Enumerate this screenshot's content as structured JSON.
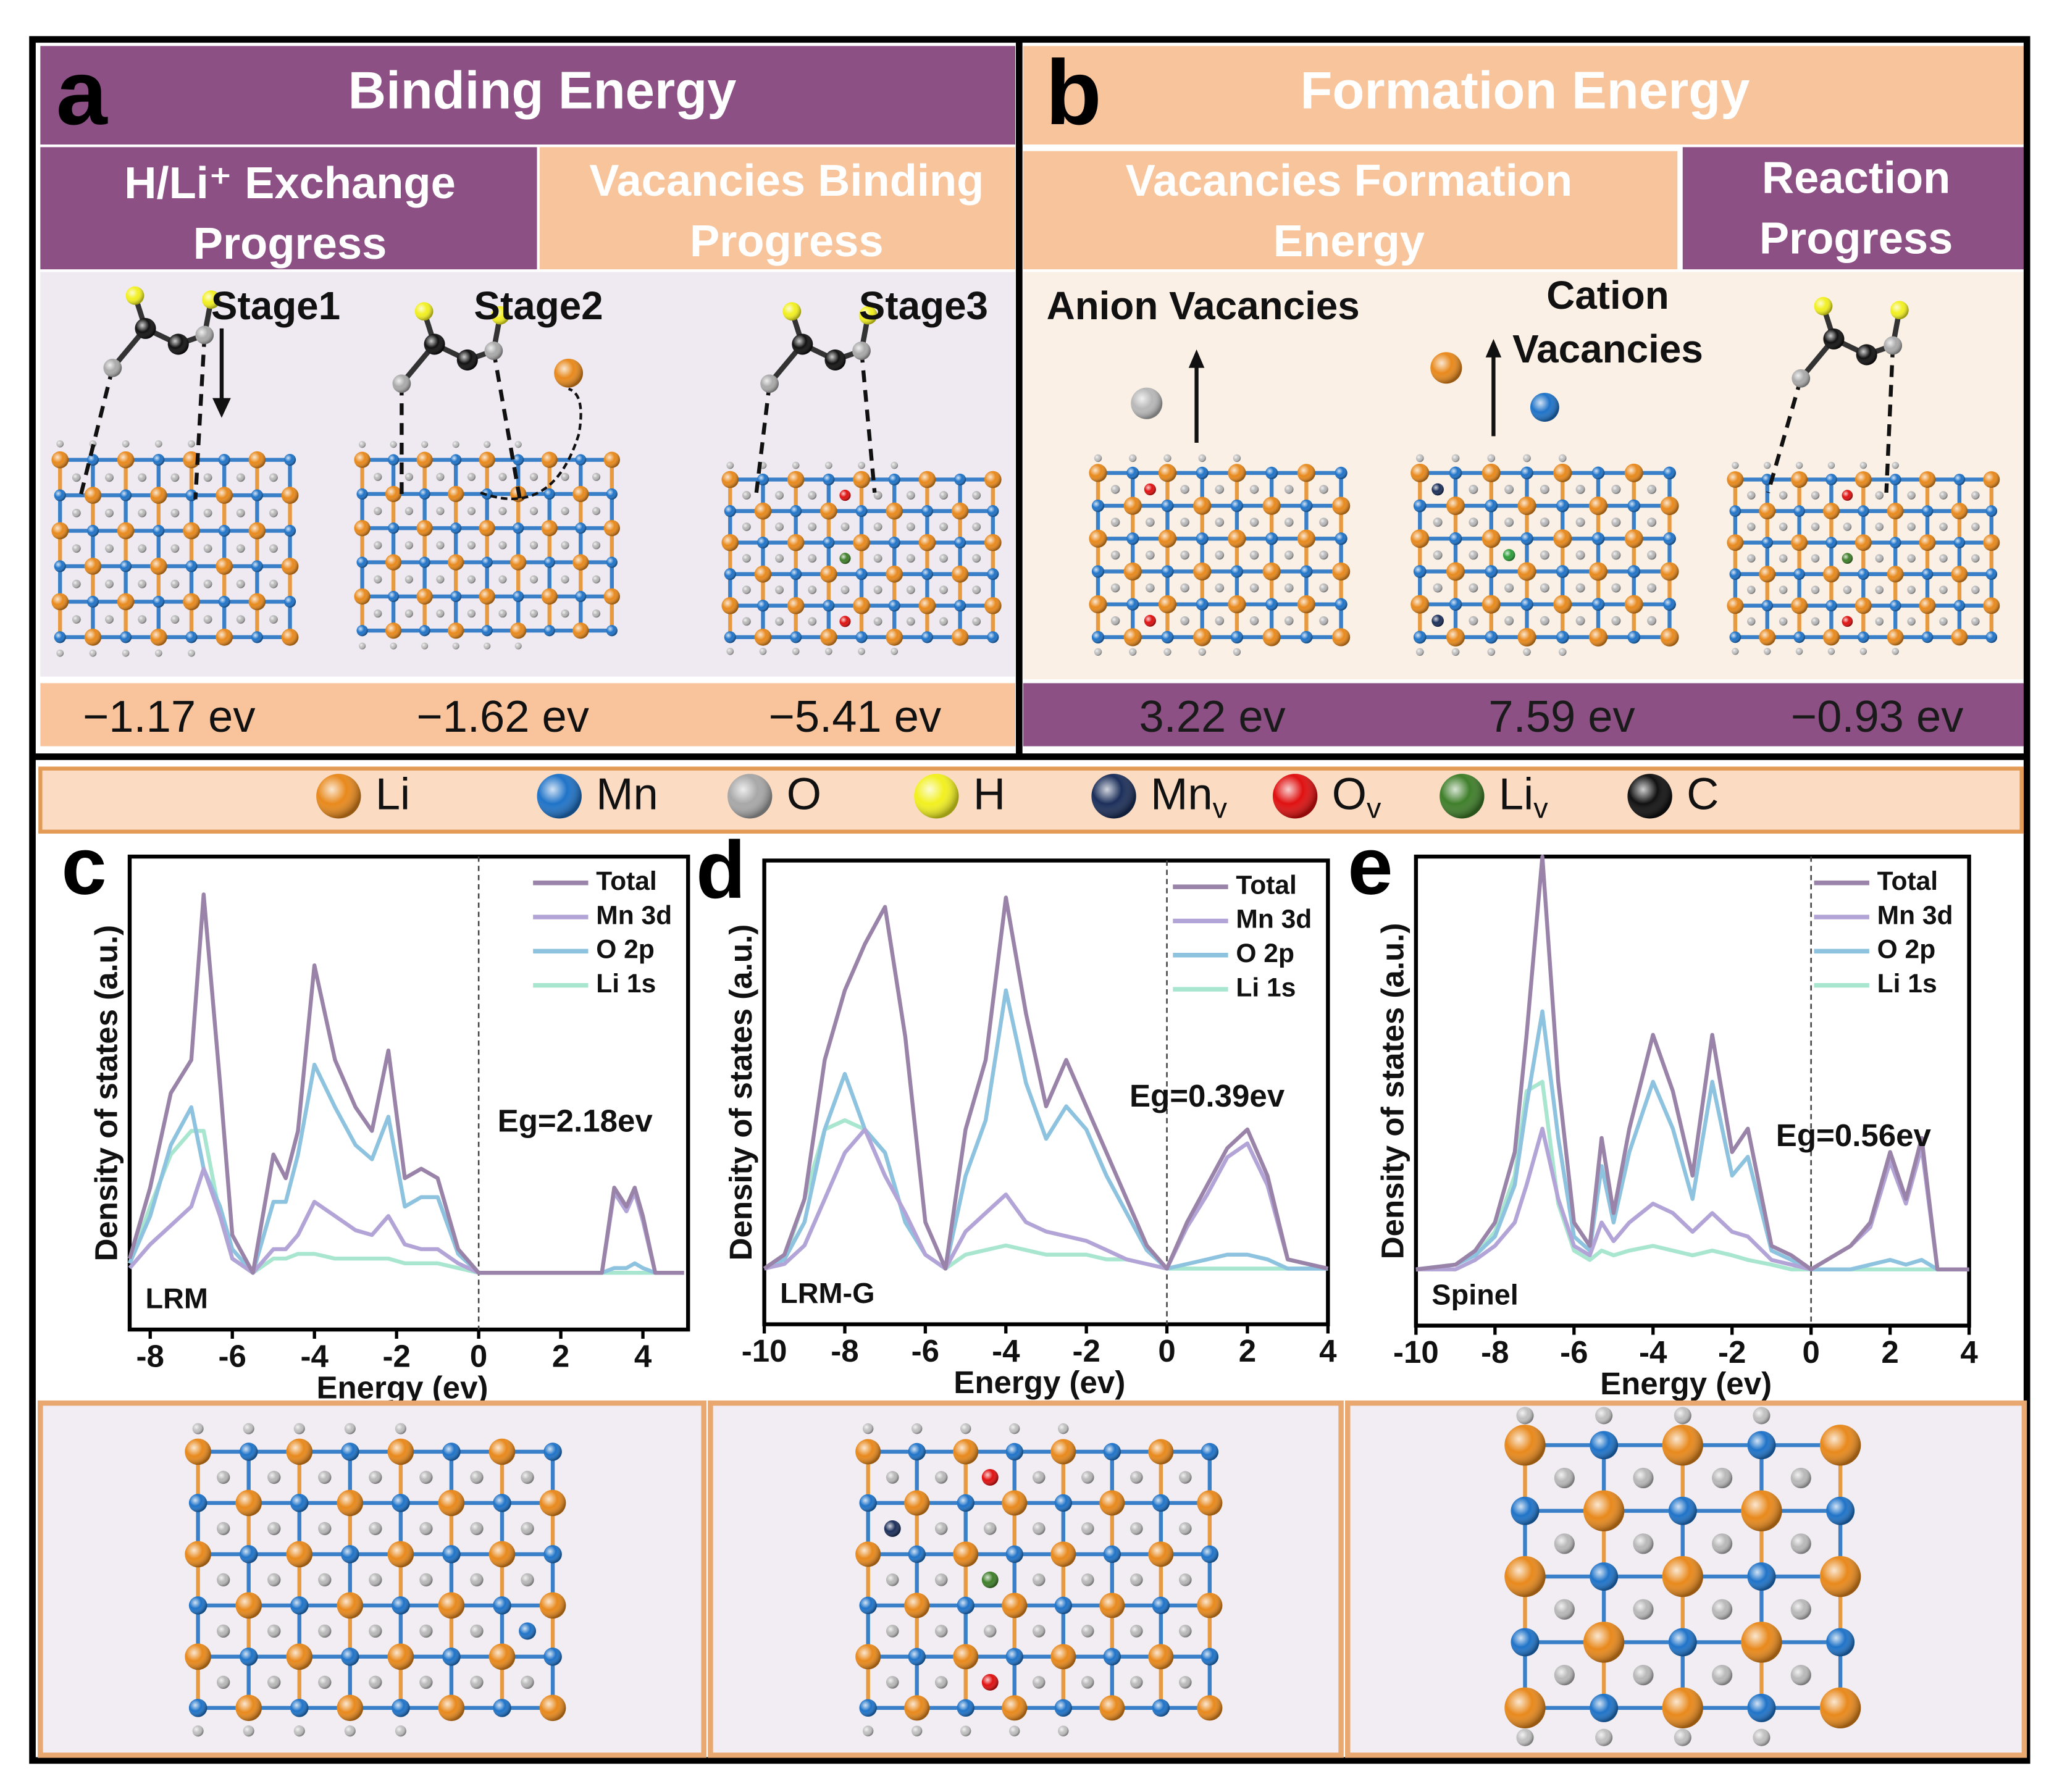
{
  "panel_a": {
    "label": "a",
    "title": "Binding Energy",
    "headers": [
      [
        "H/Li⁺ Exchange",
        "Progress"
      ],
      [
        "Vacancies Binding",
        "Progress"
      ]
    ],
    "stages": [
      "Stage1",
      "Stage2",
      "Stage3"
    ],
    "energies": [
      "−1.17 ev",
      "−1.62 ev",
      "−5.41 ev"
    ]
  },
  "panel_b": {
    "label": "b",
    "title": "Formation Energy",
    "headers": [
      [
        "Vacancies Formation",
        "Energy"
      ],
      [
        "Reaction",
        "Progress"
      ]
    ],
    "notes": [
      [
        "Anion Vacancies"
      ],
      [
        "Cation",
        "Vacancies"
      ]
    ],
    "energies": [
      "3.22 ev",
      "7.59 ev",
      "−0.93 ev"
    ]
  },
  "legend": [
    {
      "label": "Li",
      "color": "#e8891c"
    },
    {
      "label": "Mn",
      "color": "#1f73c8"
    },
    {
      "label": "O",
      "color": "#a8a8a8"
    },
    {
      "label": "H",
      "color": "#f2f020"
    },
    {
      "label": "Mn",
      "sub": "v",
      "color": "#1c2f5a"
    },
    {
      "label": "O",
      "sub": "v",
      "color": "#e01010"
    },
    {
      "label": "Li",
      "sub": "v",
      "color": "#3f7f2a"
    },
    {
      "label": "C",
      "color": "#111111"
    }
  ],
  "chart_data": [
    {
      "type": "line",
      "label": "c",
      "name": "LRM",
      "ylabel": "Density of states (a.u.)",
      "xlabel": "Energy (ev)",
      "annotation": "Eg=2.18ev",
      "xlim": [
        -8.5,
        5.1
      ],
      "xticks": [
        -8,
        -6,
        -4,
        -2,
        0,
        2,
        4
      ],
      "ylim": [
        -12,
        88
      ],
      "vline": 0,
      "x": [
        -8.5,
        -8,
        -7.5,
        -7,
        -6.7,
        -6.3,
        -6,
        -5.5,
        -5,
        -4.7,
        -4.4,
        -4,
        -3.5,
        -3,
        -2.6,
        -2.2,
        -1.8,
        -1.4,
        -1,
        -0.5,
        0,
        3,
        3.3,
        3.6,
        3.8,
        4,
        4.3,
        5
      ],
      "series": [
        {
          "name": "Total",
          "color": "#9a83a8",
          "values": [
            3,
            18,
            38,
            45,
            80,
            40,
            8,
            0,
            25,
            20,
            30,
            65,
            45,
            35,
            30,
            47,
            20,
            22,
            20,
            5,
            0,
            0,
            18,
            14,
            18,
            12,
            0,
            0
          ]
        },
        {
          "name": "Mn 3d",
          "color": "#b3a4d8",
          "values": [
            1,
            6,
            10,
            14,
            22,
            12,
            3,
            0,
            5,
            5,
            8,
            15,
            12,
            9,
            8,
            12,
            6,
            5,
            5,
            2,
            0,
            0,
            17,
            13,
            17,
            11,
            0,
            0
          ]
        },
        {
          "name": "O 2p",
          "color": "#8ec3e0",
          "values": [
            2,
            12,
            27,
            35,
            22,
            14,
            5,
            0,
            15,
            15,
            25,
            44,
            35,
            27,
            24,
            33,
            14,
            16,
            16,
            4,
            0,
            0,
            1,
            1,
            2,
            1,
            0,
            0
          ]
        },
        {
          "name": "Li 1s",
          "color": "#a8e6d0",
          "values": [
            2,
            14,
            25,
            30,
            30,
            12,
            3,
            0,
            3,
            3,
            4,
            4,
            3,
            3,
            3,
            3,
            2,
            2,
            2,
            1,
            0,
            0,
            0,
            0,
            0,
            0,
            0,
            0
          ]
        }
      ]
    },
    {
      "type": "line",
      "label": "d",
      "name": "LRM-G",
      "ylabel": "Density of states (a.u.)",
      "xlabel": "Energy (ev)",
      "annotation": "Eg=0.39ev",
      "xlim": [
        -10,
        4
      ],
      "xticks": [
        -10,
        -8,
        -6,
        -4,
        -2,
        0,
        2,
        4
      ],
      "ylim": [
        -12,
        88
      ],
      "vline": 0,
      "x": [
        -10,
        -9.5,
        -9,
        -8.5,
        -8,
        -7.5,
        -7,
        -6.5,
        -6,
        -5.5,
        -5,
        -4.5,
        -4,
        -3.5,
        -3,
        -2.5,
        -2,
        -1.5,
        -1,
        -0.5,
        0,
        0.5,
        1,
        1.5,
        2,
        2.5,
        3,
        4
      ],
      "series": [
        {
          "name": "Total",
          "color": "#9a83a8",
          "values": [
            0,
            3,
            15,
            45,
            60,
            70,
            78,
            50,
            10,
            0,
            30,
            45,
            80,
            55,
            35,
            45,
            35,
            25,
            15,
            5,
            0,
            10,
            18,
            26,
            30,
            20,
            2,
            0
          ]
        },
        {
          "name": "Mn 3d",
          "color": "#b3a4d8",
          "values": [
            0,
            1,
            5,
            15,
            25,
            30,
            20,
            12,
            3,
            0,
            8,
            12,
            16,
            10,
            8,
            7,
            6,
            4,
            2,
            1,
            0,
            9,
            16,
            24,
            27,
            18,
            2,
            0
          ]
        },
        {
          "name": "O 2p",
          "color": "#8ec3e0",
          "values": [
            0,
            2,
            10,
            30,
            42,
            30,
            25,
            10,
            3,
            0,
            20,
            32,
            60,
            40,
            28,
            35,
            30,
            20,
            12,
            4,
            0,
            1,
            2,
            3,
            3,
            2,
            0,
            0
          ]
        },
        {
          "name": "Li 1s",
          "color": "#a8e6d0",
          "values": [
            0,
            2,
            15,
            30,
            32,
            30,
            25,
            10,
            3,
            0,
            3,
            4,
            5,
            4,
            3,
            3,
            3,
            2,
            2,
            1,
            0,
            0,
            0,
            0,
            0,
            0,
            0,
            0
          ]
        }
      ]
    },
    {
      "type": "line",
      "label": "e",
      "name": "Spinel",
      "ylabel": "Density of states (a.u.)",
      "xlabel": "Energy (ev)",
      "annotation": "Eg=0.56ev",
      "xlim": [
        -10,
        4
      ],
      "xticks": [
        -10,
        -8,
        -6,
        -4,
        -2,
        0,
        2,
        4
      ],
      "ylim": [
        -12,
        88
      ],
      "vline": 0,
      "x": [
        -10,
        -9,
        -8.5,
        -8,
        -7.5,
        -7.2,
        -6.8,
        -6.4,
        -6,
        -5.6,
        -5.3,
        -5,
        -4.6,
        -4,
        -3.5,
        -3,
        -2.5,
        -2,
        -1.6,
        -1,
        -0.5,
        0,
        1,
        1.5,
        2,
        2.4,
        2.8,
        3.2,
        4
      ],
      "series": [
        {
          "name": "Total",
          "color": "#9a83a8",
          "values": [
            0,
            1,
            4,
            10,
            25,
            50,
            88,
            40,
            10,
            5,
            28,
            12,
            30,
            50,
            38,
            20,
            50,
            25,
            30,
            5,
            3,
            0,
            5,
            10,
            25,
            15,
            28,
            0,
            0
          ]
        },
        {
          "name": "Mn 3d",
          "color": "#b3a4d8",
          "values": [
            0,
            0,
            2,
            5,
            10,
            18,
            30,
            15,
            5,
            3,
            10,
            6,
            10,
            14,
            12,
            8,
            12,
            8,
            7,
            2,
            1,
            0,
            5,
            9,
            23,
            14,
            26,
            0,
            0
          ]
        },
        {
          "name": "O 2p",
          "color": "#8ec3e0",
          "values": [
            0,
            1,
            3,
            7,
            18,
            35,
            55,
            28,
            7,
            4,
            22,
            10,
            25,
            40,
            30,
            15,
            40,
            20,
            24,
            4,
            2,
            0,
            0,
            1,
            2,
            1,
            2,
            0,
            0
          ]
        },
        {
          "name": "Li 1s",
          "color": "#a8e6d0",
          "values": [
            0,
            1,
            3,
            8,
            20,
            38,
            40,
            14,
            4,
            2,
            4,
            3,
            4,
            5,
            4,
            3,
            4,
            3,
            2,
            1,
            0,
            0,
            0,
            0,
            0,
            0,
            0,
            0,
            0
          ]
        }
      ]
    }
  ]
}
